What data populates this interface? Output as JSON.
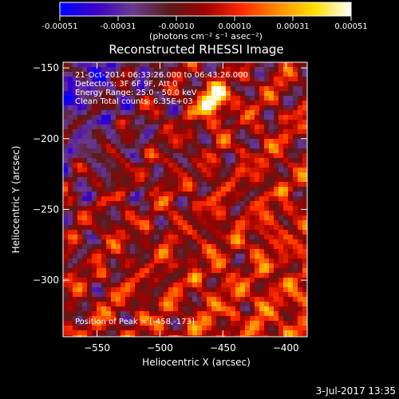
{
  "colorbar": {
    "tick_labels": [
      "-0.00051",
      "-0.00031",
      "-0.00010",
      "0.00010",
      "0.00031",
      "0.00051"
    ],
    "unit_label": "(photons cm⁻² s⁻¹ asec⁻²)",
    "colormap": [
      "#0000ff",
      "#3a00c8",
      "#6b3a8c",
      "#5a1a1a",
      "#a00000",
      "#ff2a00",
      "#ff8c00",
      "#ffe100",
      "#ffffff"
    ]
  },
  "chart_data": {
    "type": "heatmap",
    "title": "Reconstructed RHESSI Image",
    "xlabel": "Heliocentric X (arcsec)",
    "ylabel": "Heliocentric Y (arcsec)",
    "xlim": [
      -577,
      -383
    ],
    "ylim": [
      -340,
      -146
    ],
    "x_ticks": [
      -550,
      -500,
      -450,
      -400
    ],
    "y_ticks": [
      -150,
      -200,
      -250,
      -300
    ],
    "annotations": [
      "21-Oct-2014 06:33:26.000 to 06:43:26.000",
      "Detectors: 3F 6F 9F, Att 0",
      "Energy Range: 25.0 - 50.0 keV",
      "Clean     Total counts: 6.35E+03"
    ],
    "peak_label": "Position of Peak = [-458,-173]",
    "peak": [
      -458,
      -173
    ]
  },
  "footer": {
    "timestamp": "3-Jul-2017 13:35"
  }
}
